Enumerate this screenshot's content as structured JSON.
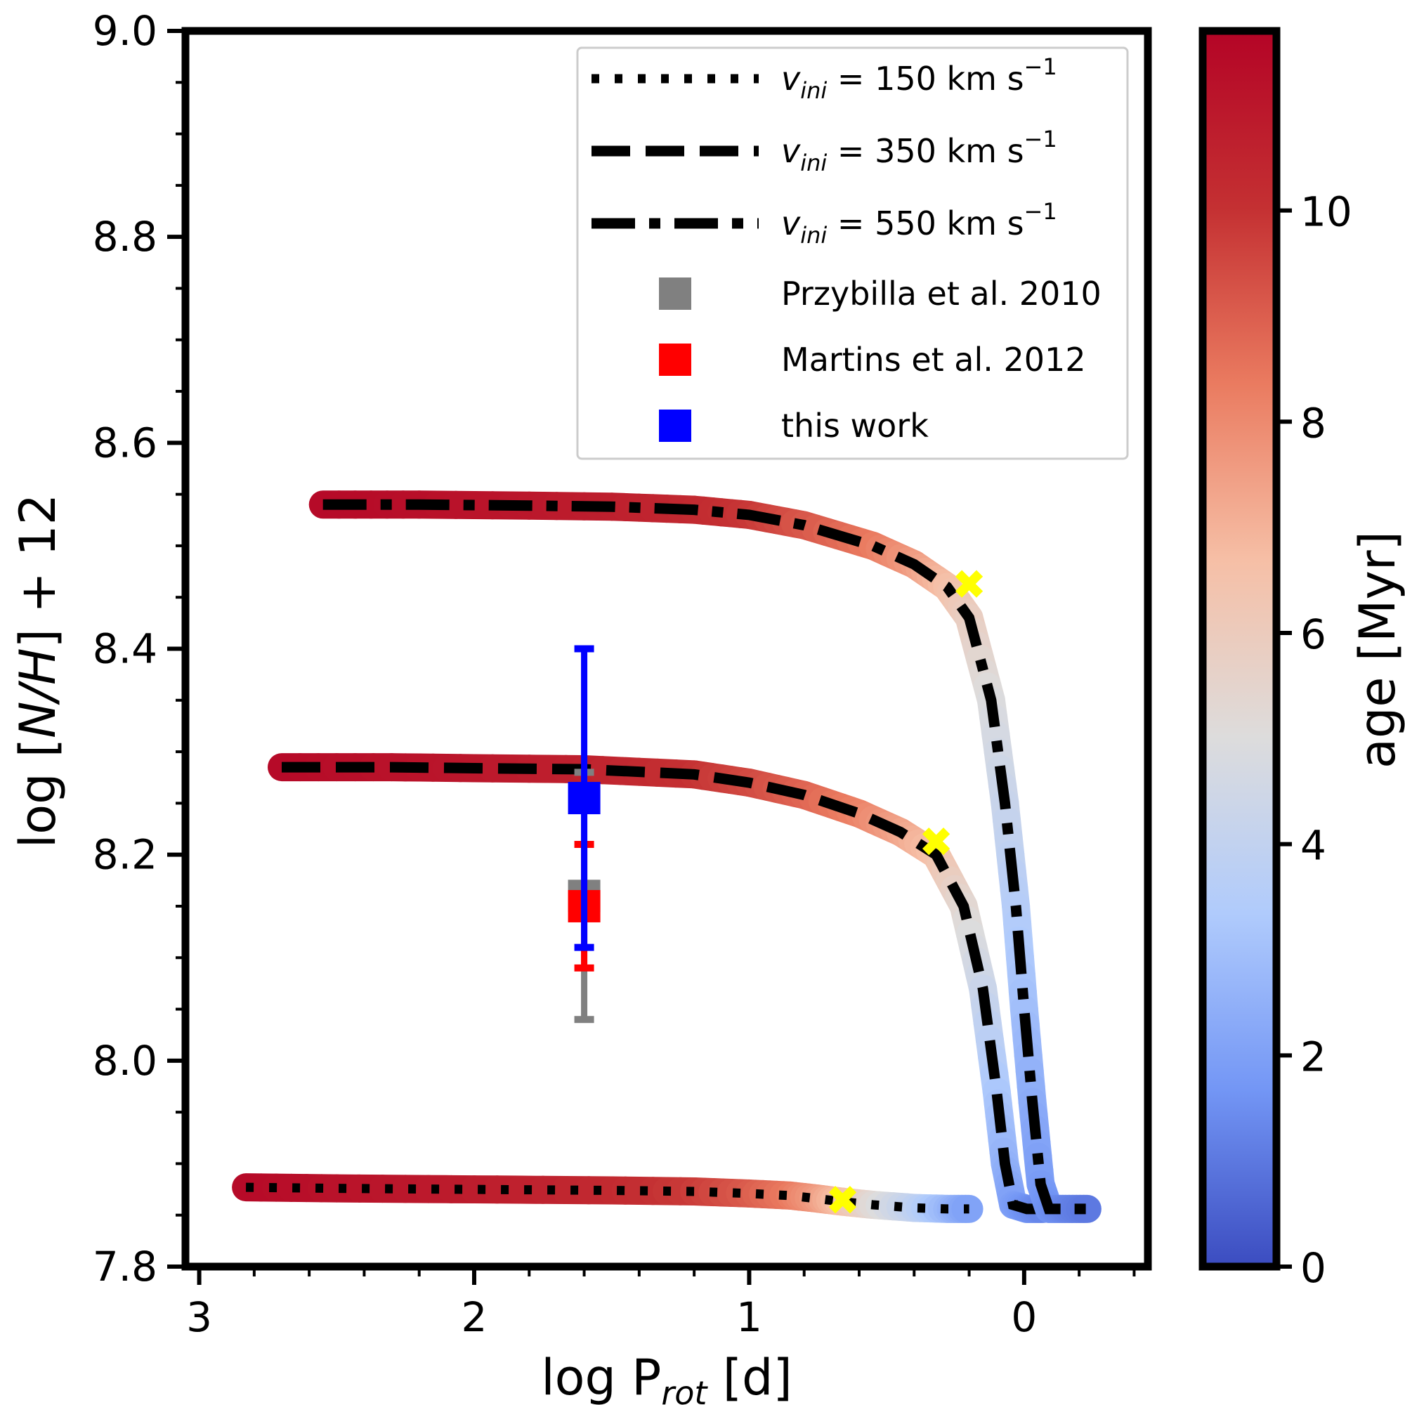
{
  "chart_data": {
    "type": "line",
    "title": "",
    "xlabel": "log P_rot [d]",
    "xlabel_main": "log P",
    "xlabel_sub": "rot",
    "xlabel_unit": " [d]",
    "ylabel": "log [N/H] + 12",
    "ylabel_parts": {
      "pre": "log [",
      "italic": "N/H",
      "post": "] + 12"
    },
    "x_inverted": true,
    "xlim": [
      3.05,
      -0.45
    ],
    "ylim": [
      7.8,
      9.0
    ],
    "xticks": [
      3,
      2,
      1,
      0
    ],
    "xtick_labels": [
      "3",
      "2",
      "1",
      "0"
    ],
    "yticks": [
      7.8,
      8.0,
      8.2,
      8.4,
      8.6,
      8.8,
      9.0
    ],
    "ytick_labels": [
      "7.8",
      "8.0",
      "8.2",
      "8.4",
      "8.6",
      "8.8",
      "9.0"
    ],
    "series": [
      {
        "name": "v_ini = 150 km s^-1",
        "style": "dotted",
        "points": [
          [
            2.83,
            7.877
          ],
          [
            2.5,
            7.876
          ],
          [
            2.0,
            7.875
          ],
          [
            1.5,
            7.874
          ],
          [
            1.2,
            7.873
          ],
          [
            1.0,
            7.871
          ],
          [
            0.85,
            7.869
          ],
          [
            0.75,
            7.866
          ],
          [
            0.66,
            7.863
          ],
          [
            0.55,
            7.86
          ],
          [
            0.4,
            7.857
          ],
          [
            0.28,
            7.856
          ],
          [
            0.2,
            7.856
          ]
        ],
        "age": [
          11.5,
          11.2,
          10.8,
          10.3,
          9.8,
          9.1,
          8.4,
          7.6,
          6.6,
          5.3,
          4.0,
          2.8,
          2.0
        ],
        "yellow_marker": [
          0.66,
          7.865
        ]
      },
      {
        "name": "v_ini = 350 km s^-1",
        "style": "dashed",
        "points": [
          [
            2.7,
            8.285
          ],
          [
            2.3,
            8.285
          ],
          [
            2.0,
            8.284
          ],
          [
            1.6,
            8.283
          ],
          [
            1.2,
            8.278
          ],
          [
            1.0,
            8.27
          ],
          [
            0.8,
            8.258
          ],
          [
            0.6,
            8.24
          ],
          [
            0.45,
            8.222
          ],
          [
            0.32,
            8.2
          ],
          [
            0.22,
            8.15
          ],
          [
            0.15,
            8.07
          ],
          [
            0.1,
            7.97
          ],
          [
            0.07,
            7.9
          ],
          [
            0.04,
            7.86
          ],
          [
            -0.01,
            7.856
          ],
          [
            -0.07,
            7.856
          ]
        ],
        "age": [
          11.5,
          11.2,
          11.0,
          10.6,
          10.0,
          9.5,
          8.9,
          8.2,
          7.4,
          6.6,
          5.4,
          4.4,
          3.3,
          2.6,
          2.0,
          1.6,
          1.3
        ],
        "yellow_marker": [
          0.32,
          8.213
        ]
      },
      {
        "name": "v_ini = 550 km s^-1",
        "style": "dashdot",
        "points": [
          [
            2.55,
            8.54
          ],
          [
            2.2,
            8.54
          ],
          [
            1.8,
            8.539
          ],
          [
            1.5,
            8.538
          ],
          [
            1.2,
            8.535
          ],
          [
            1.0,
            8.53
          ],
          [
            0.8,
            8.52
          ],
          [
            0.55,
            8.5
          ],
          [
            0.4,
            8.482
          ],
          [
            0.28,
            8.46
          ],
          [
            0.2,
            8.43
          ],
          [
            0.12,
            8.35
          ],
          [
            0.07,
            8.25
          ],
          [
            0.03,
            8.15
          ],
          [
            0.0,
            8.05
          ],
          [
            -0.03,
            7.96
          ],
          [
            -0.06,
            7.88
          ],
          [
            -0.09,
            7.856
          ],
          [
            -0.15,
            7.856
          ],
          [
            -0.23,
            7.856
          ]
        ],
        "age": [
          11.5,
          11.3,
          11.0,
          10.7,
          10.3,
          9.9,
          9.2,
          8.4,
          7.6,
          6.7,
          5.9,
          5.0,
          4.3,
          3.6,
          3.0,
          2.4,
          1.9,
          1.6,
          1.3,
          1.0
        ],
        "yellow_marker": [
          0.2,
          8.463
        ]
      }
    ],
    "observations": [
      {
        "name": "Przybilla et al. 2010",
        "color": "#808080",
        "x": 1.6,
        "y": 8.16,
        "yerr_low": 8.04,
        "yerr_high": 8.28
      },
      {
        "name": "Martins et al. 2012",
        "color": "#ff0000",
        "x": 1.6,
        "y": 8.15,
        "yerr_low": 8.09,
        "yerr_high": 8.21
      },
      {
        "name": "this work",
        "color": "#0000ff",
        "x": 1.6,
        "y": 8.255,
        "yerr_low": 8.11,
        "yerr_high": 8.4
      }
    ],
    "legend": {
      "placement": "top-right",
      "entries": [
        {
          "prefix": "v",
          "sub": "ini",
          "suffix": " = 150 km s",
          "sup": "−1",
          "style": "dotted"
        },
        {
          "prefix": "v",
          "sub": "ini",
          "suffix": " = 350 km s",
          "sup": "−1",
          "style": "dashed"
        },
        {
          "prefix": "v",
          "sub": "ini",
          "suffix": " = 550 km s",
          "sup": "−1",
          "style": "dashdot"
        },
        {
          "label": "Przybilla et al. 2010",
          "color": "#808080"
        },
        {
          "label": "Martins et al. 2012",
          "color": "#ff0000"
        },
        {
          "label": "this work",
          "color": "#0000ff"
        }
      ]
    },
    "colorbar": {
      "label": "age [Myr]",
      "range": [
        0,
        11.7
      ],
      "ticks": [
        0,
        2,
        4,
        6,
        8,
        10
      ],
      "tick_labels": [
        "0",
        "2",
        "4",
        "6",
        "8",
        "10"
      ],
      "colormap": "coolwarm",
      "colormap_stops": [
        "#3b4cc0",
        "#7396f5",
        "#b0cbfc",
        "#dddcdc",
        "#f6bfa6",
        "#ea7b60",
        "#c43032",
        "#b40426"
      ]
    },
    "marker_color": "#ffff00"
  }
}
